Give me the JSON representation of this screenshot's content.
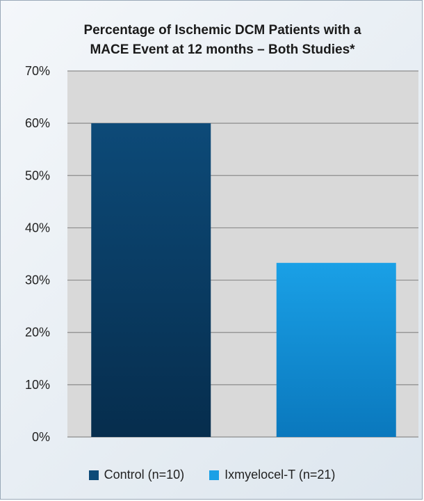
{
  "chart_data": {
    "type": "bar",
    "title": "Percentage of Ischemic DCM Patients with a MACE Event at 12 months – Both Studies*",
    "title_lines": [
      "Percentage of Ischemic DCM Patients with a",
      "MACE Event at 12 months – Both Studies*"
    ],
    "categories": [
      "Control (n=10)",
      "Ixmyelocel-T (n=21)"
    ],
    "values": [
      60,
      33.3
    ],
    "ylim": [
      0,
      70
    ],
    "yticks": [
      0,
      10,
      20,
      30,
      40,
      50,
      60,
      70
    ],
    "ytick_labels": [
      "0%",
      "10%",
      "20%",
      "30%",
      "40%",
      "50%",
      "60%",
      "70%"
    ],
    "grid": true,
    "legend_position": "bottom",
    "colors": {
      "control_top": "#0d4a78",
      "control_bottom": "#062d4d",
      "ixmyelocel_top": "#1aa0e6",
      "ixmyelocel_bottom": "#0a78bd",
      "plot_background": "#d9d9d9",
      "gridline": "#8c8c8c"
    }
  }
}
